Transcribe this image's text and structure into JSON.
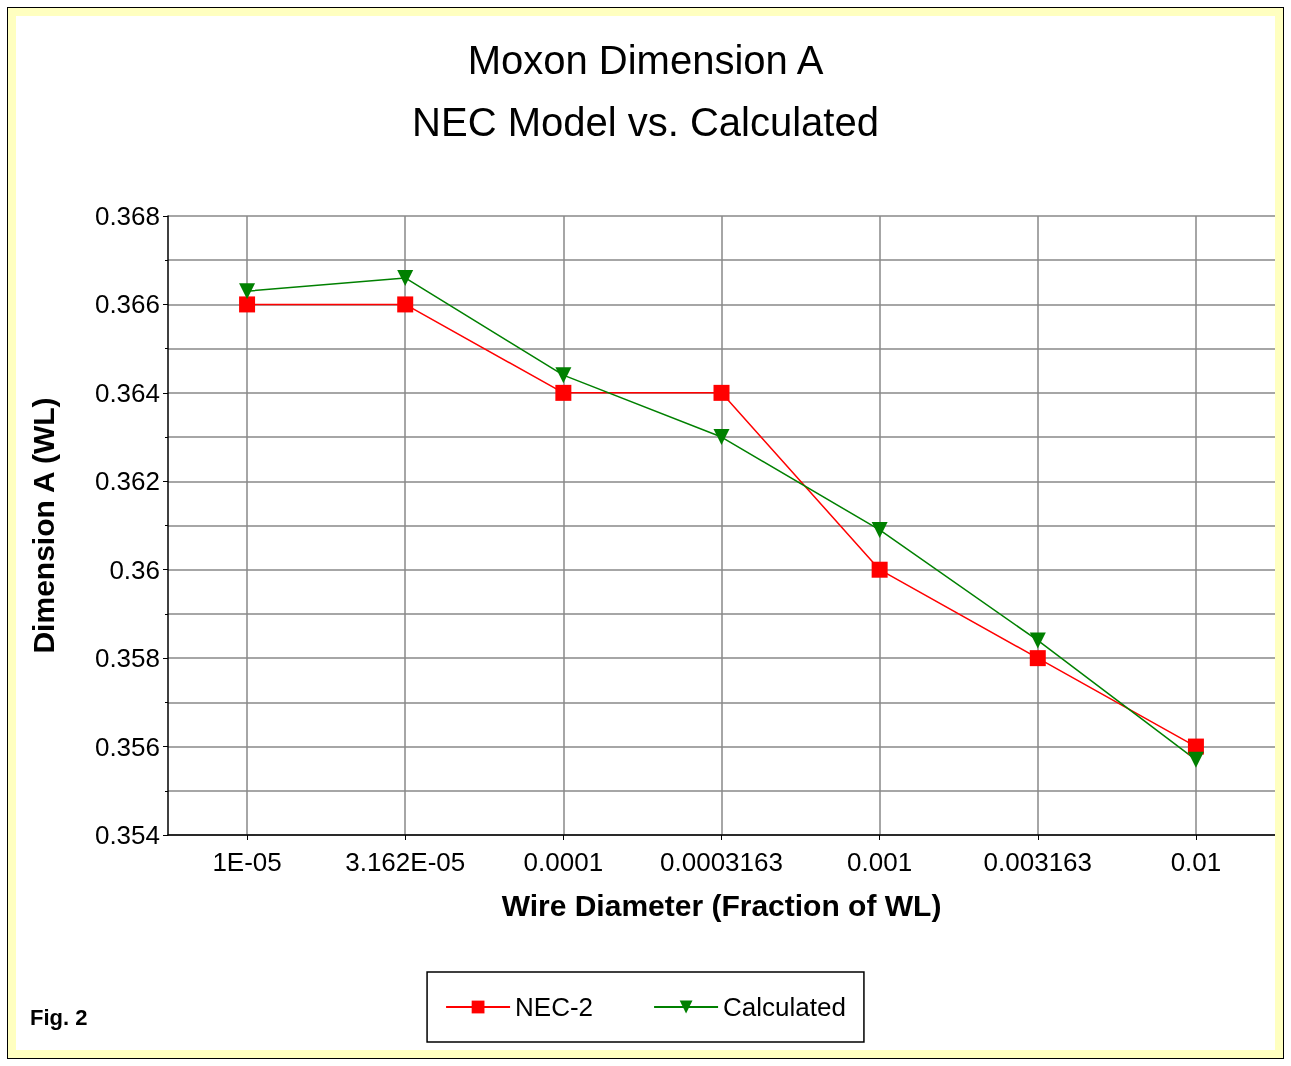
{
  "chart_data": {
    "type": "line",
    "title": "Moxon Dimension A\nNEC Model vs. Calculated",
    "xlabel": "Wire Diameter (Fraction of WL)",
    "ylabel": "Dimension A (WL)",
    "categories": [
      "1E-05",
      "3.162E-05",
      "0.0001",
      "0.0003163",
      "0.001",
      "0.003163",
      "0.01"
    ],
    "series": [
      {
        "name": "NEC-2",
        "color": "#ff0000",
        "marker": "square",
        "values": [
          0.366,
          0.366,
          0.364,
          0.364,
          0.36,
          0.358,
          0.356
        ]
      },
      {
        "name": "Calculated",
        "color": "#008000",
        "marker": "triangle",
        "values": [
          0.3663,
          0.3666,
          0.3644,
          0.363,
          0.3609,
          0.3584,
          0.3557
        ]
      }
    ],
    "ylim": [
      0.354,
      0.368
    ],
    "yticks": [
      0.354,
      0.356,
      0.358,
      0.36,
      0.362,
      0.364,
      0.366,
      0.368
    ],
    "grid": true,
    "legend": "bottom",
    "line_style": "solid",
    "annotations": [
      "Fig. 2"
    ]
  }
}
